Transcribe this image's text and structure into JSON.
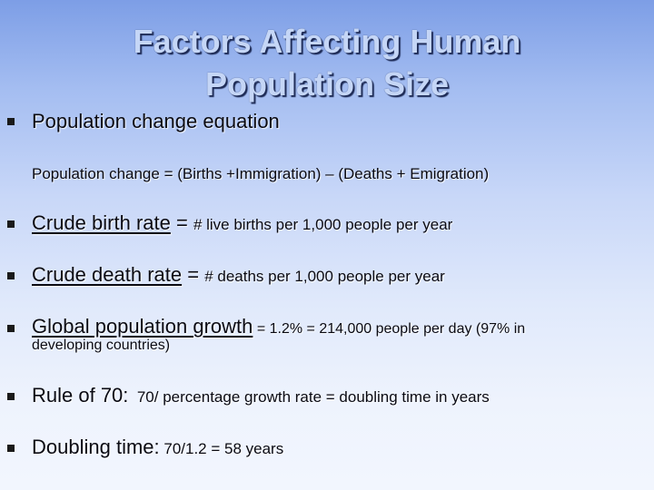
{
  "title": {
    "line1": "Factors Affecting Human",
    "line2": "Population Size"
  },
  "items": [
    {
      "lead": "Population change equation"
    },
    {
      "sub": "Population change = (Births +Immigration) – (Deaths + Emigration)"
    },
    {
      "term": "Crude birth rate",
      "sep": " = ",
      "def": "# live births per 1,000 people per year"
    },
    {
      "term": "Crude death rate",
      "sep": " = ",
      "def": "# deaths per 1,000 people per year"
    },
    {
      "term": "Global population growth",
      "def": " = 1.2% = 214,000 people per day (97% in",
      "def_cont": "developing countries)"
    },
    {
      "term": "Rule of 70:",
      "def": "  70/ percentage growth rate = doubling time in years"
    },
    {
      "term": "Doubling time:",
      "def": " 70/1.2 = 58 years"
    }
  ],
  "icons": {
    "bullet": "square-bullet-icon"
  },
  "colors": {
    "title_fill": "#c5d6f6",
    "title_shadow": "#1d2a55",
    "background_top": "#7d9ee6",
    "background_bottom": "#f2f6fe"
  }
}
